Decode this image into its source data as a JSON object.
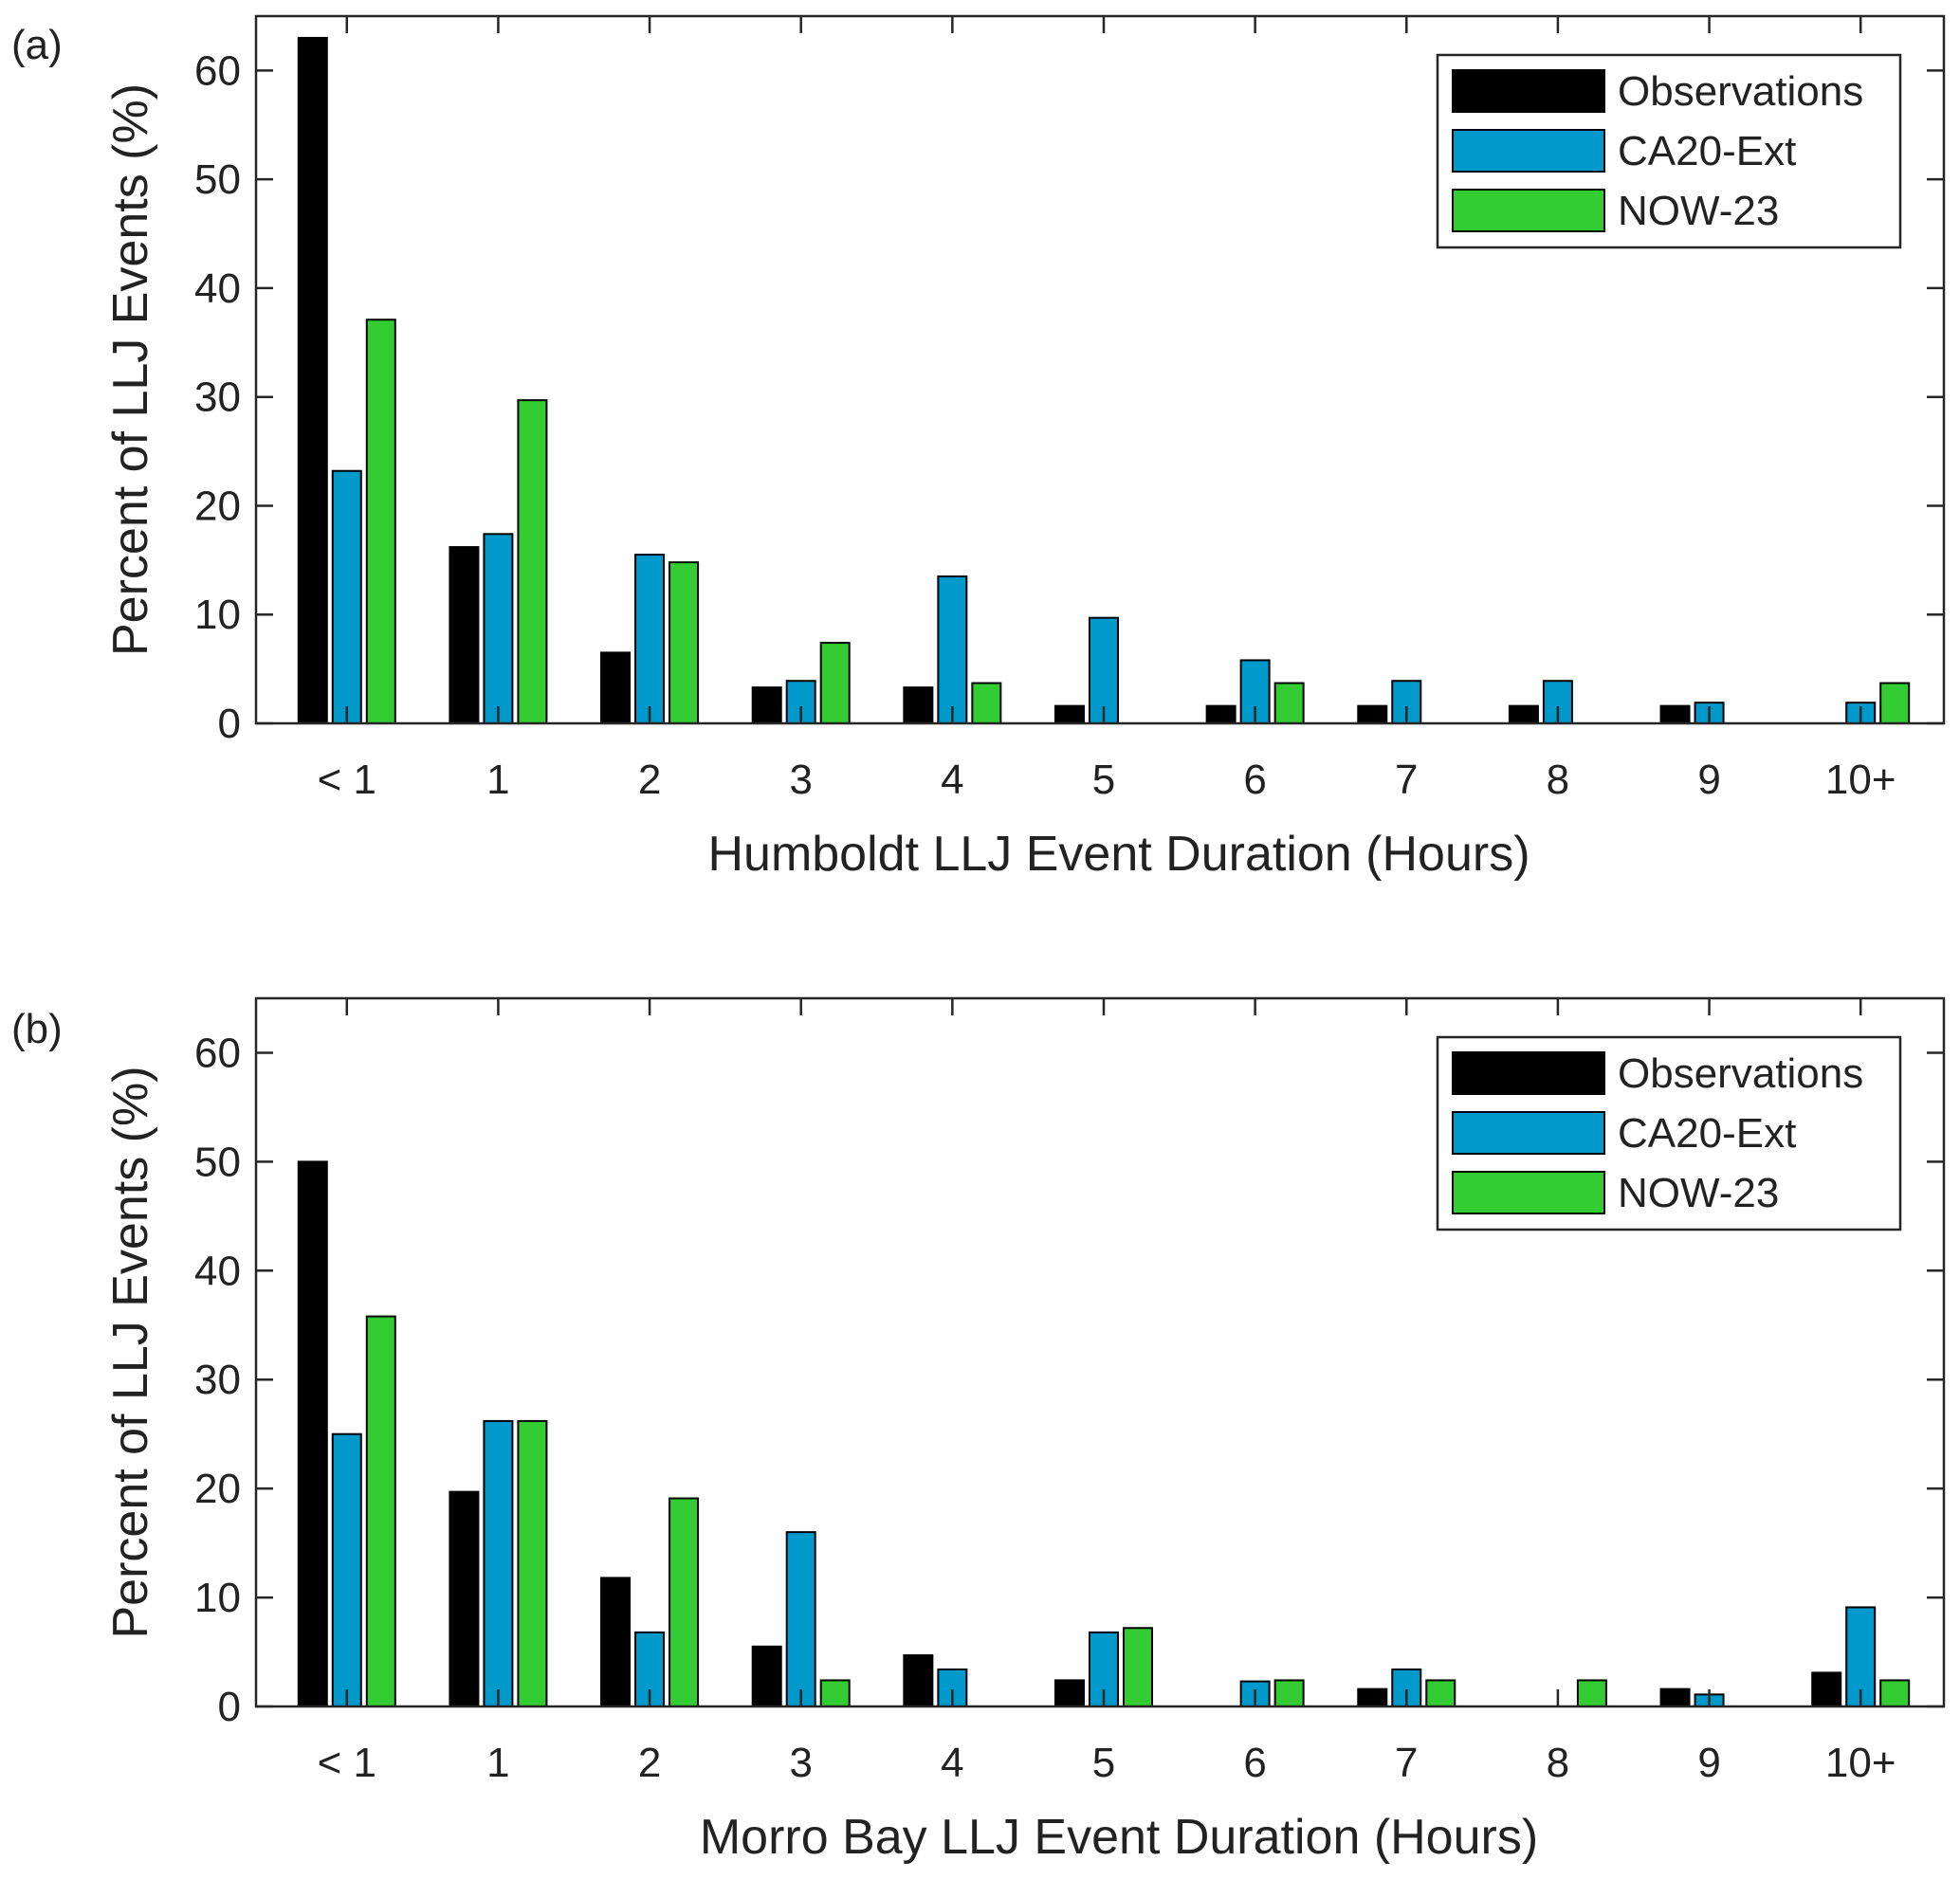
{
  "chart_data": [
    {
      "type": "bar",
      "panel_label": "(a)",
      "categories": [
        "< 1",
        "1",
        "2",
        "3",
        "4",
        "5",
        "6",
        "7",
        "8",
        "9",
        "10+"
      ],
      "series": [
        {
          "name": "Observations",
          "color": "#000000",
          "values": [
            63,
            16.2,
            6.5,
            3.3,
            3.3,
            1.6,
            1.6,
            1.6,
            1.6,
            1.6,
            0
          ]
        },
        {
          "name": "CA20-Ext",
          "color": "#0099cc",
          "values": [
            23.2,
            17.4,
            15.5,
            3.9,
            13.5,
            9.7,
            5.8,
            3.9,
            3.9,
            1.9,
            1.9
          ]
        },
        {
          "name": "NOW-23",
          "color": "#33cc33",
          "values": [
            37.1,
            29.7,
            14.8,
            7.4,
            3.7,
            0,
            3.7,
            0,
            0,
            0,
            3.7
          ]
        }
      ],
      "xlabel": "Humboldt LLJ Event Duration (Hours)",
      "ylabel": "Percent of LLJ Events (%)",
      "ylim": [
        0,
        65
      ],
      "yticks": [
        0,
        10,
        20,
        30,
        40,
        50,
        60
      ],
      "legend_position": "top-right",
      "grid": false
    },
    {
      "type": "bar",
      "panel_label": "(b)",
      "categories": [
        "< 1",
        "1",
        "2",
        "3",
        "4",
        "5",
        "6",
        "7",
        "8",
        "9",
        "10+"
      ],
      "series": [
        {
          "name": "Observations",
          "color": "#000000",
          "values": [
            50,
            19.7,
            11.8,
            5.5,
            4.7,
            2.4,
            0,
            1.6,
            0,
            1.6,
            3.1
          ]
        },
        {
          "name": "CA20-Ext",
          "color": "#0099cc",
          "values": [
            25,
            26.2,
            6.8,
            16,
            3.4,
            6.8,
            2.3,
            3.4,
            0,
            1.1,
            9.1
          ]
        },
        {
          "name": "NOW-23",
          "color": "#33cc33",
          "values": [
            35.8,
            26.2,
            19.1,
            2.4,
            0,
            7.2,
            2.4,
            2.4,
            2.4,
            0,
            2.4
          ]
        }
      ],
      "xlabel": "Morro Bay LLJ Event Duration (Hours)",
      "ylabel": "Percent of LLJ Events (%)",
      "ylim": [
        0,
        65
      ],
      "yticks": [
        0,
        10,
        20,
        30,
        40,
        50,
        60
      ],
      "legend_position": "top-right",
      "grid": false
    }
  ]
}
